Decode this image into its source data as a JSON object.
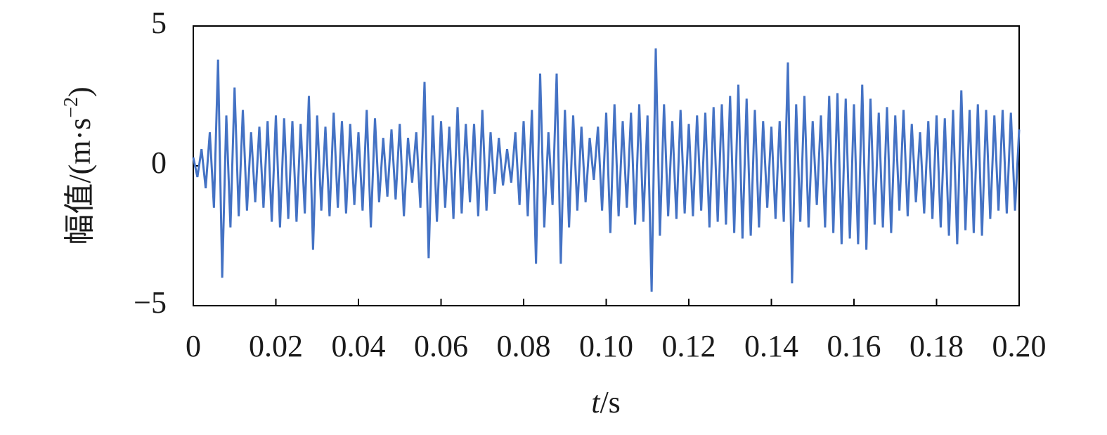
{
  "chart_data": {
    "type": "line",
    "ylabel": {
      "text": "幅值/(m·s",
      "sup": "−2",
      "end": ")"
    },
    "xlabel": {
      "var": "t",
      "unit": "/s"
    },
    "color": "#4472c4",
    "xlim": [
      0,
      0.2
    ],
    "ylim": [
      -5,
      5
    ],
    "xticks": [
      0,
      0.02,
      0.04,
      0.06,
      0.08,
      {
        "value": 0.1,
        "label": "0.10"
      },
      0.12,
      0.14,
      0.16,
      0.18,
      {
        "value": 0.2,
        "label": "0.20"
      }
    ],
    "yticks": [
      {
        "value": -5,
        "label": "−5"
      },
      0,
      5
    ],
    "x": [
      0,
      0.001,
      0.002,
      0.003,
      0.004,
      0.005,
      0.006,
      0.007,
      0.008,
      0.009,
      0.01,
      0.011,
      0.012,
      0.013,
      0.014,
      0.015,
      0.016,
      0.017,
      0.018,
      0.019,
      0.02,
      0.021,
      0.022,
      0.023,
      0.024,
      0.025,
      0.026,
      0.027,
      0.028,
      0.029,
      0.03,
      0.031,
      0.032,
      0.033,
      0.034,
      0.035,
      0.036,
      0.037,
      0.038,
      0.039,
      0.04,
      0.041,
      0.042,
      0.043,
      0.044,
      0.045,
      0.046,
      0.047,
      0.048,
      0.049,
      0.05,
      0.051,
      0.052,
      0.053,
      0.054,
      0.055,
      0.056,
      0.057,
      0.058,
      0.059,
      0.06,
      0.061,
      0.062,
      0.063,
      0.064,
      0.065,
      0.066,
      0.067,
      0.068,
      0.069,
      0.07,
      0.071,
      0.072,
      0.073,
      0.074,
      0.075,
      0.076,
      0.077,
      0.078,
      0.079,
      0.08,
      0.081,
      0.082,
      0.083,
      0.084,
      0.085,
      0.086,
      0.087,
      0.088,
      0.089,
      0.09,
      0.091,
      0.092,
      0.093,
      0.094,
      0.095,
      0.096,
      0.097,
      0.098,
      0.099,
      0.1,
      0.101,
      0.102,
      0.103,
      0.104,
      0.105,
      0.106,
      0.107,
      0.108,
      0.109,
      0.11,
      0.111,
      0.112,
      0.113,
      0.114,
      0.115,
      0.116,
      0.117,
      0.118,
      0.119,
      0.12,
      0.121,
      0.122,
      0.123,
      0.124,
      0.125,
      0.126,
      0.127,
      0.128,
      0.129,
      0.13,
      0.131,
      0.132,
      0.133,
      0.134,
      0.135,
      0.136,
      0.137,
      0.138,
      0.139,
      0.14,
      0.141,
      0.142,
      0.143,
      0.144,
      0.145,
      0.146,
      0.147,
      0.148,
      0.149,
      0.15,
      0.151,
      0.152,
      0.153,
      0.154,
      0.155,
      0.156,
      0.157,
      0.158,
      0.159,
      0.16,
      0.161,
      0.162,
      0.163,
      0.164,
      0.165,
      0.166,
      0.167,
      0.168,
      0.169,
      0.17,
      0.171,
      0.172,
      0.173,
      0.174,
      0.175,
      0.176,
      0.177,
      0.178,
      0.179,
      0.18,
      0.181,
      0.182,
      0.183,
      0.184,
      0.185,
      0.186,
      0.187,
      0.188,
      0.189,
      0.19,
      0.191,
      0.192,
      0.193,
      0.194,
      0.195,
      0.196,
      0.197,
      0.198,
      0.199,
      0.2
    ],
    "values": [
      0.3,
      -0.4,
      0.6,
      -0.8,
      1.2,
      -1.5,
      3.8,
      -4.0,
      1.8,
      -2.2,
      2.8,
      -1.8,
      2.0,
      -1.6,
      1.2,
      -1.3,
      1.4,
      -1.5,
      1.6,
      -2.0,
      1.8,
      -2.2,
      1.7,
      -1.9,
      1.6,
      -2.0,
      1.5,
      -1.7,
      2.5,
      -3.0,
      1.8,
      -1.6,
      1.4,
      -1.8,
      1.9,
      -1.5,
      1.6,
      -1.7,
      1.5,
      -1.4,
      1.2,
      -1.6,
      2.0,
      -2.2,
      1.7,
      -1.3,
      1.0,
      -1.1,
      1.3,
      -1.2,
      1.5,
      -1.8,
      1.0,
      -0.6,
      1.2,
      -1.5,
      3.0,
      -3.3,
      1.8,
      -2.0,
      1.6,
      -1.5,
      1.4,
      -1.9,
      2.1,
      -1.7,
      1.5,
      -1.3,
      1.5,
      -1.8,
      2.0,
      -1.6,
      1.2,
      -1.0,
      1.0,
      -0.7,
      0.6,
      -0.6,
      1.2,
      -1.4,
      1.6,
      -1.8,
      2.0,
      -3.5,
      3.3,
      -2.2,
      1.2,
      -1.4,
      3.3,
      -3.5,
      2.0,
      -2.2,
      1.8,
      -1.6,
      1.4,
      -1.3,
      1.0,
      -0.5,
      1.4,
      -1.6,
      1.9,
      -2.4,
      2.2,
      -1.8,
      1.6,
      -1.5,
      1.9,
      -2.1,
      2.2,
      -2.0,
      1.8,
      -4.5,
      4.2,
      -2.5,
      2.2,
      -1.8,
      1.6,
      -1.9,
      2.0,
      -1.7,
      1.5,
      -1.8,
      1.8,
      -1.6,
      1.9,
      -2.2,
      2.1,
      -2.0,
      2.2,
      -2.1,
      2.5,
      -2.4,
      2.9,
      -2.6,
      2.4,
      -2.5,
      2.0,
      -2.2,
      1.6,
      -1.5,
      1.4,
      -1.9,
      1.6,
      -2.0,
      3.7,
      -4.2,
      2.2,
      -2.0,
      2.5,
      -2.2,
      1.6,
      -1.4,
      1.8,
      -2.2,
      2.5,
      -2.4,
      2.6,
      -2.8,
      2.4,
      -2.6,
      2.2,
      -2.8,
      2.9,
      -3.0,
      2.4,
      -2.1,
      1.9,
      -2.2,
      2.1,
      -2.4,
      1.8,
      -1.6,
      2.0,
      -1.8,
      1.5,
      -1.3,
      1.2,
      -1.7,
      1.6,
      -1.9,
      1.8,
      -2.2,
      1.7,
      -2.5,
      2.0,
      -2.8,
      2.7,
      -2.3,
      2.0,
      -2.4,
      2.2,
      -2.5,
      2.0,
      -1.9,
      1.8,
      -1.6,
      2.0,
      -1.7,
      1.9,
      -1.6,
      1.3
    ]
  }
}
